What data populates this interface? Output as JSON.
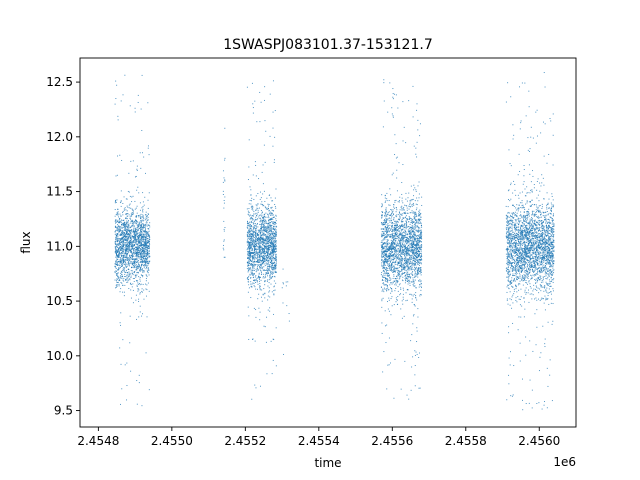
{
  "chart_data": {
    "type": "scatter",
    "title": "1SWASPJ083101.37-153121.7",
    "xlabel": "time",
    "ylabel": "flux",
    "x_offset_label": "1e6",
    "xlim": [
      2454750,
      2456100
    ],
    "ylim": [
      9.35,
      12.72
    ],
    "grid": false,
    "legend": "none",
    "marker_color": "#1f77b4",
    "x_ticks": [
      {
        "value": 2454800,
        "label": "2.4548"
      },
      {
        "value": 2455000,
        "label": "2.4550"
      },
      {
        "value": 2455200,
        "label": "2.4552"
      },
      {
        "value": 2455400,
        "label": "2.4554"
      },
      {
        "value": 2455600,
        "label": "2.4556"
      },
      {
        "value": 2455800,
        "label": "2.4558"
      },
      {
        "value": 2456000,
        "label": "2.4560"
      }
    ],
    "y_ticks": [
      {
        "value": 9.5,
        "label": "9.5"
      },
      {
        "value": 10.0,
        "label": "10.0"
      },
      {
        "value": 10.5,
        "label": "10.5"
      },
      {
        "value": 11.0,
        "label": "11.0"
      },
      {
        "value": 11.5,
        "label": "11.5"
      },
      {
        "value": 12.0,
        "label": "12.0"
      },
      {
        "value": 12.5,
        "label": "12.5"
      }
    ],
    "observing_seasons": [
      {
        "start": 2454845,
        "end": 2454940,
        "typical_flux": 11.0,
        "spread": 0.17,
        "min_flux": 9.5,
        "max_flux": 12.6
      },
      {
        "start": 2455140,
        "end": 2455145,
        "typical_flux": 11.3,
        "spread": 0.35,
        "min_flux": 10.9,
        "max_flux": 12.2
      },
      {
        "start": 2455205,
        "end": 2455285,
        "typical_flux": 11.0,
        "spread": 0.18,
        "min_flux": 9.6,
        "max_flux": 12.55
      },
      {
        "start": 2455300,
        "end": 2455320,
        "typical_flux": 10.5,
        "spread": 0.2,
        "min_flux": 9.9,
        "max_flux": 10.8
      },
      {
        "start": 2455570,
        "end": 2455680,
        "typical_flux": 11.0,
        "spread": 0.2,
        "min_flux": 9.6,
        "max_flux": 12.55
      },
      {
        "start": 2455910,
        "end": 2456040,
        "typical_flux": 11.0,
        "spread": 0.2,
        "min_flux": 9.5,
        "max_flux": 12.6
      }
    ],
    "points_per_season": [
      1900,
      25,
      1700,
      12,
      2200,
      2600
    ]
  }
}
